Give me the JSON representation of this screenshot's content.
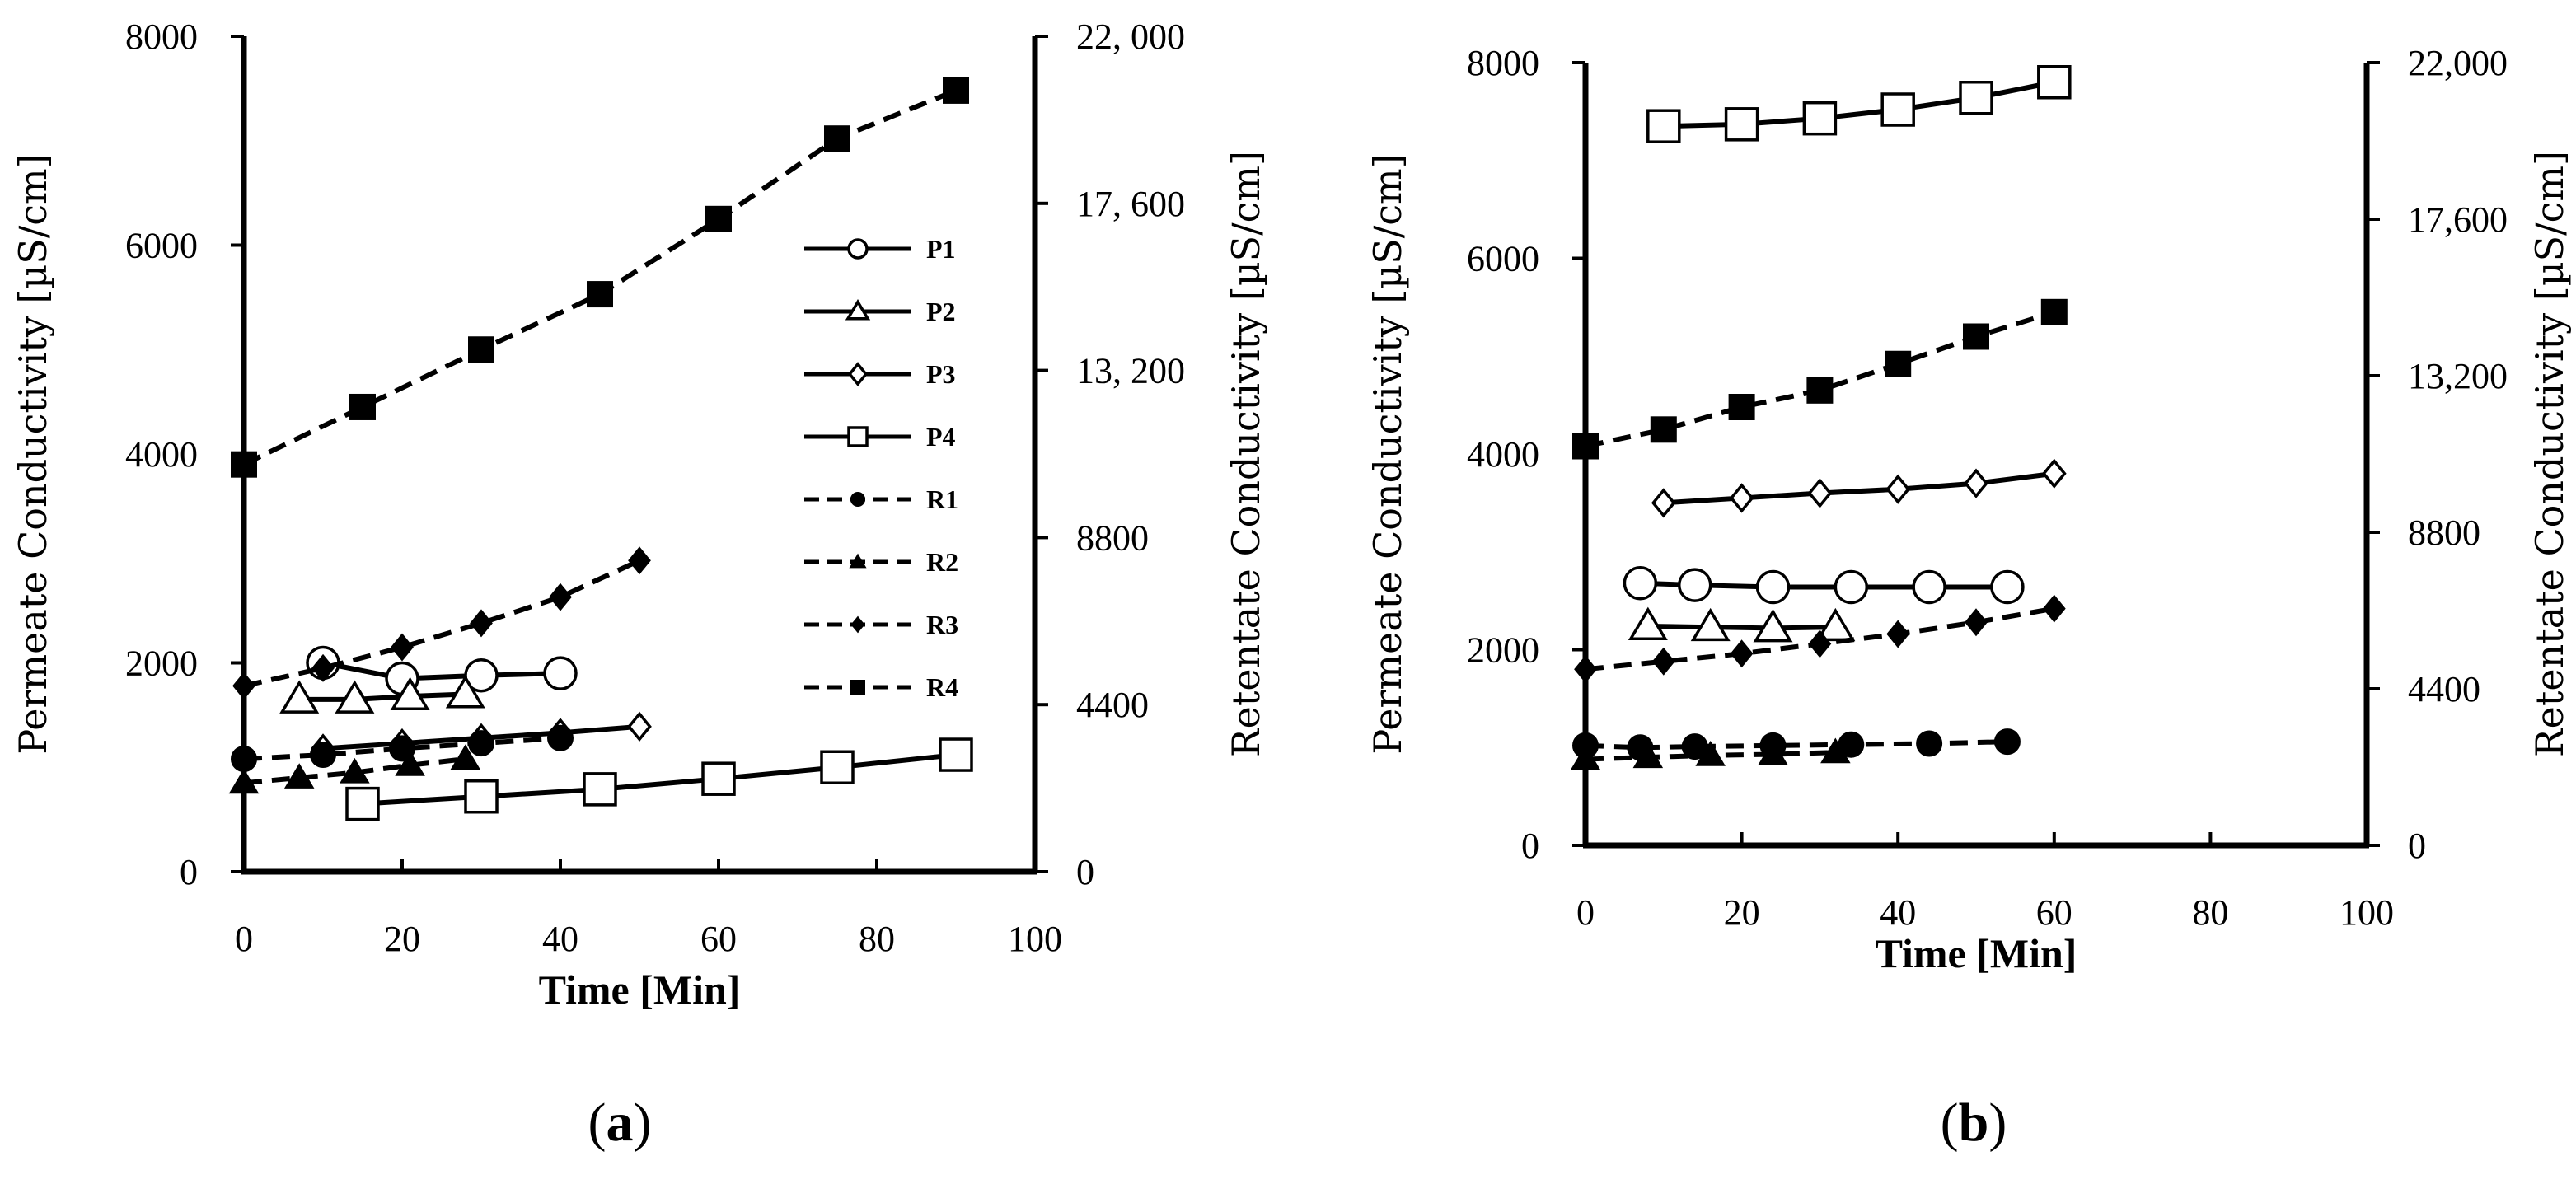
{
  "chart_data": [
    {
      "type": "line",
      "panel_label_open": "(",
      "panel_label_letter": "a",
      "panel_label_close": ")",
      "xlabel": "Time [Min]",
      "ylabel_left": "Permeate Conductivity [µS/cm]",
      "ylabel_right": "Retentate Conductivity [µS/cm]",
      "xlim": [
        0,
        100
      ],
      "ylim_left": [
        0,
        8000
      ],
      "ylim_right": [
        0,
        22000
      ],
      "xticks": [
        "0",
        "20",
        "40",
        "60",
        "80",
        "100"
      ],
      "yticks_left": [
        "0",
        "2000",
        "4000",
        "6000",
        "8000"
      ],
      "yticks_right": [
        "0",
        "4400",
        "8800",
        "13, 200",
        "17, 600",
        "22, 000"
      ],
      "legend_position": "right",
      "legend": [
        "P1",
        "P2",
        "P3",
        "P4",
        "R1",
        "R2",
        "R3",
        "R4"
      ],
      "series": [
        {
          "name": "P1",
          "axis": "left",
          "marker": "circle-open",
          "dash": "solid",
          "x": [
            10,
            20,
            30,
            40
          ],
          "y": [
            2000,
            1850,
            1880,
            1900
          ]
        },
        {
          "name": "P2",
          "axis": "left",
          "marker": "triangle-open",
          "dash": "solid",
          "x": [
            7,
            14,
            21,
            28
          ],
          "y": [
            1650,
            1650,
            1680,
            1700
          ]
        },
        {
          "name": "P3",
          "axis": "left",
          "marker": "diamond-open",
          "dash": "solid",
          "x": [
            10,
            20,
            30,
            40,
            50
          ],
          "y": [
            1180,
            1230,
            1280,
            1330,
            1390
          ]
        },
        {
          "name": "P4",
          "axis": "left",
          "marker": "square-open",
          "dash": "solid",
          "x": [
            15,
            30,
            45,
            60,
            75,
            90
          ],
          "y": [
            650,
            720,
            790,
            890,
            1000,
            1120
          ]
        },
        {
          "name": "R1",
          "axis": "left",
          "marker": "circle-filled",
          "dash": "dashed",
          "x": [
            0,
            10,
            20,
            30,
            40
          ],
          "y": [
            1080,
            1120,
            1180,
            1230,
            1280
          ]
        },
        {
          "name": "R2",
          "axis": "left",
          "marker": "triangle-filled",
          "dash": "dashed",
          "x": [
            0,
            7,
            14,
            21,
            28
          ],
          "y": [
            850,
            900,
            950,
            1020,
            1080
          ]
        },
        {
          "name": "R3",
          "axis": "left",
          "marker": "diamond-filled",
          "dash": "dashed",
          "x": [
            0,
            10,
            20,
            30,
            40,
            50
          ],
          "y": [
            1780,
            1950,
            2150,
            2380,
            2630,
            2980
          ]
        },
        {
          "name": "R4",
          "axis": "left",
          "marker": "square-filled",
          "dash": "dashed",
          "x": [
            0,
            15,
            30,
            45,
            60,
            75,
            90
          ],
          "y": [
            3900,
            4450,
            5000,
            5530,
            6250,
            7020,
            7480
          ]
        }
      ]
    },
    {
      "type": "line",
      "panel_label_open": "(",
      "panel_label_letter": "b",
      "panel_label_close": ")",
      "xlabel": "Time [Min]",
      "ylabel_left": "Permeate Conductivity [µS/cm]",
      "ylabel_right": "Retentate Conductivity [µS/cm]",
      "xlim": [
        0,
        100
      ],
      "ylim_left": [
        0,
        8000
      ],
      "ylim_right": [
        0,
        22000
      ],
      "xticks": [
        "0",
        "20",
        "40",
        "60",
        "80",
        "100"
      ],
      "yticks_left": [
        "0",
        "2000",
        "4000",
        "6000",
        "8000"
      ],
      "yticks_right": [
        "0",
        "4400",
        "8800",
        "13,200",
        "17,600",
        "22,000"
      ],
      "series": [
        {
          "name": "P1",
          "axis": "left",
          "marker": "circle-open",
          "dash": "solid",
          "x": [
            7,
            14,
            24,
            34,
            44,
            54
          ],
          "y": [
            2680,
            2660,
            2640,
            2640,
            2640,
            2640
          ]
        },
        {
          "name": "P2",
          "axis": "left",
          "marker": "triangle-open",
          "dash": "solid",
          "x": [
            8,
            16,
            24,
            32
          ],
          "y": [
            2240,
            2230,
            2220,
            2230
          ]
        },
        {
          "name": "P3",
          "axis": "left",
          "marker": "diamond-open",
          "dash": "solid",
          "x": [
            10,
            20,
            30,
            40,
            50,
            60
          ],
          "y": [
            3500,
            3550,
            3600,
            3640,
            3700,
            3800
          ]
        },
        {
          "name": "P4",
          "axis": "left",
          "marker": "square-open",
          "dash": "solid",
          "x": [
            10,
            20,
            30,
            40,
            50,
            60
          ],
          "y": [
            7350,
            7370,
            7430,
            7520,
            7640,
            7800
          ]
        },
        {
          "name": "R1",
          "axis": "left",
          "marker": "circle-filled",
          "dash": "dashed",
          "x": [
            0,
            7,
            14,
            24,
            34,
            44,
            54
          ],
          "y": [
            1020,
            1000,
            1010,
            1020,
            1030,
            1040,
            1060
          ]
        },
        {
          "name": "R2",
          "axis": "left",
          "marker": "triangle-filled",
          "dash": "dashed",
          "x": [
            0,
            8,
            16,
            24,
            32
          ],
          "y": [
            880,
            900,
            920,
            930,
            950
          ]
        },
        {
          "name": "R3",
          "axis": "left",
          "marker": "diamond-filled",
          "dash": "dashed",
          "x": [
            0,
            10,
            20,
            30,
            40,
            50,
            60
          ],
          "y": [
            1800,
            1880,
            1960,
            2060,
            2160,
            2280,
            2420
          ]
        },
        {
          "name": "R4",
          "axis": "left",
          "marker": "square-filled",
          "dash": "dashed",
          "x": [
            0,
            10,
            20,
            30,
            40,
            50,
            60
          ],
          "y": [
            4080,
            4250,
            4480,
            4650,
            4920,
            5200,
            5450
          ]
        }
      ]
    }
  ]
}
